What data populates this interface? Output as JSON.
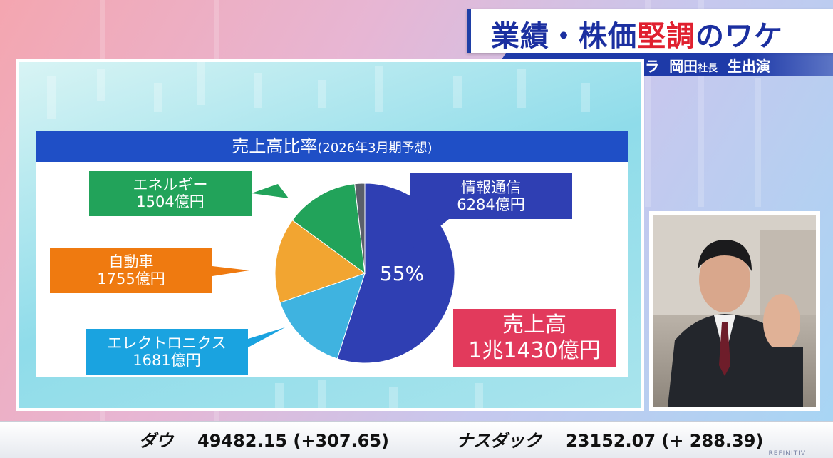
{
  "headline": {
    "part1": "業績・株価",
    "part2_red": "堅調",
    "part3": "のワケ"
  },
  "subline": {
    "company": "フジクラ",
    "person": "岡田",
    "title_small": "社長",
    "status": "生出演"
  },
  "card": {
    "title": "売上高比率",
    "title_sub": "(2026年3月期予想)"
  },
  "segments": {
    "energy": {
      "name": "エネルギー",
      "value": "1504億円",
      "color": "#22a35a"
    },
    "auto": {
      "name": "自動車",
      "value": "1755億円",
      "color": "#f2a531"
    },
    "electronics": {
      "name": "エレクトロニクス",
      "value": "1681億円",
      "color": "#3fb3e0"
    },
    "info": {
      "name": "情報通信",
      "value": "6284億円",
      "color": "#2f3fb3"
    }
  },
  "pie_center_label": "55%",
  "sales_total": {
    "label": "売上高",
    "value": "1兆1430億円"
  },
  "chart_data": {
    "type": "pie",
    "title": "売上高比率(2026年3月期予想)",
    "slices": [
      {
        "name": "情報通信",
        "value": 6284,
        "unit": "億円",
        "color": "#2f3fb3"
      },
      {
        "name": "エレクトロニクス",
        "value": 1681,
        "unit": "億円",
        "color": "#3fb3e0"
      },
      {
        "name": "自動車",
        "value": 1755,
        "unit": "億円",
        "color": "#f2a531"
      },
      {
        "name": "エネルギー",
        "value": 1504,
        "unit": "億円",
        "color": "#22a35a"
      },
      {
        "name": "",
        "value": 206,
        "unit": "億円",
        "color": "#5a5f6a"
      }
    ],
    "total": 11430
  },
  "ticker": {
    "dow_name": "ダウ",
    "dow_value": "49482.15 (+307.65)",
    "nasdaq_name": "ナスダック",
    "nasdaq_value": "23152.07 (+ 288.39)",
    "source": "REFINITIV"
  }
}
